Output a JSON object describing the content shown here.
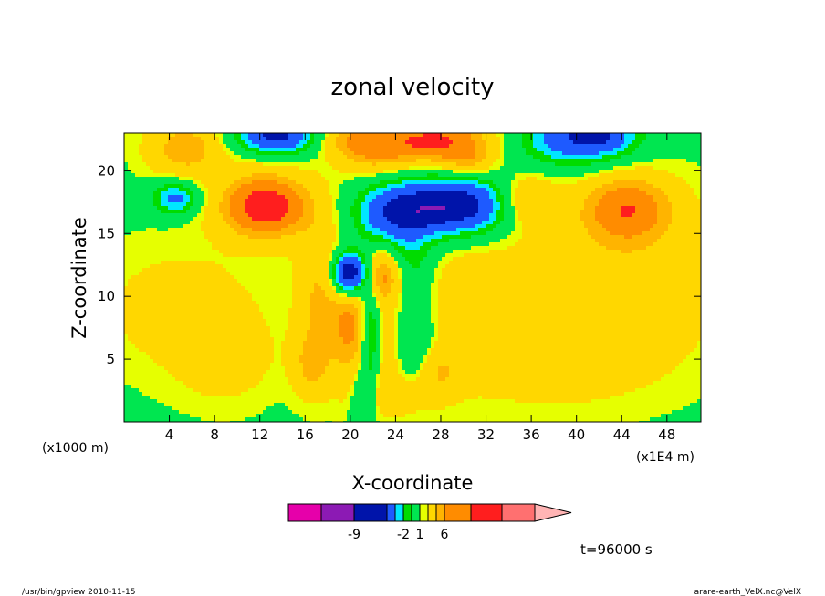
{
  "chart_data": {
    "type": "heatmap",
    "title": "zonal velocity",
    "xlabel": "X-coordinate",
    "ylabel": "Z-coordinate",
    "x_unit_left": "(x1000 m)",
    "x_unit_right": "(x1E4 m)",
    "xlim": [
      0,
      51
    ],
    "ylim": [
      0,
      23
    ],
    "x_ticks": [
      4,
      8,
      12,
      16,
      20,
      24,
      28,
      32,
      36,
      40,
      44,
      48
    ],
    "y_ticks": [
      5,
      10,
      15,
      20
    ],
    "time_label": "t=96000 s",
    "colorbar": {
      "colors": [
        "#e600aa",
        "#8c1ab4",
        "#0014aa",
        "#1e5aff",
        "#00e6ff",
        "#00dc00",
        "#00e650",
        "#e6ff00",
        "#ffd700",
        "#ffb400",
        "#ff8c00",
        "#ff1e1e",
        "#ff7070",
        "#ffb4b4"
      ],
      "tick_labels": [
        "-9",
        "-2",
        "1",
        "6"
      ],
      "tick_after_box": [
        1,
        4,
        6,
        9
      ]
    },
    "features": [
      {
        "x": 5.5,
        "z": 21.8,
        "sx": 2.4,
        "sy": 1.6,
        "amp": 3
      },
      {
        "x": 13.5,
        "z": 22.8,
        "sx": 2.5,
        "sy": 1.0,
        "amp": -6
      },
      {
        "x": 19.5,
        "z": 22.6,
        "sx": 2.0,
        "sy": 1.0,
        "amp": 2
      },
      {
        "x": 22.0,
        "z": 21.6,
        "sx": 2.2,
        "sy": 1.4,
        "amp": 2.5
      },
      {
        "x": 27.5,
        "z": 22.4,
        "sx": 3.5,
        "sy": 1.3,
        "amp": 5
      },
      {
        "x": 30.5,
        "z": 20.6,
        "sx": 1.5,
        "sy": 0.9,
        "amp": 2
      },
      {
        "x": 40.0,
        "z": 22.6,
        "sx": 3.5,
        "sy": 1.5,
        "amp": -5
      },
      {
        "x": 42.5,
        "z": 22.8,
        "sx": 1.8,
        "sy": 0.9,
        "amp": -2
      },
      {
        "x": 4.5,
        "z": 17.8,
        "sx": 1.4,
        "sy": 0.9,
        "amp": -4
      },
      {
        "x": 12.5,
        "z": 17.2,
        "sx": 2.8,
        "sy": 1.8,
        "amp": 6
      },
      {
        "x": 24.0,
        "z": 16.6,
        "sx": 2.5,
        "sy": 1.7,
        "amp": -5
      },
      {
        "x": 29.5,
        "z": 17.2,
        "sx": 3.2,
        "sy": 1.6,
        "amp": -7
      },
      {
        "x": 35.5,
        "z": 17.6,
        "sx": 1.8,
        "sy": 1.4,
        "amp": 2.5
      },
      {
        "x": 44.5,
        "z": 17.0,
        "sx": 2.8,
        "sy": 1.9,
        "amp": 4
      },
      {
        "x": 20.0,
        "z": 11.8,
        "sx": 1.1,
        "sy": 1.2,
        "amp": -9
      },
      {
        "x": 22.5,
        "z": 11.6,
        "sx": 1.4,
        "sy": 1.6,
        "amp": 4
      },
      {
        "x": 25.5,
        "z": 12.5,
        "sx": 1.4,
        "sy": 2.0,
        "amp": -2
      },
      {
        "x": 17.5,
        "z": 10.0,
        "sx": 1.5,
        "sy": 4.0,
        "amp": 2.5
      },
      {
        "x": 20.0,
        "z": 7.5,
        "sx": 1.0,
        "sy": 3.0,
        "amp": 3
      },
      {
        "x": 21.8,
        "z": 7.5,
        "sx": 0.6,
        "sy": 3.5,
        "amp": -3
      },
      {
        "x": 25.5,
        "z": 6.0,
        "sx": 1.6,
        "sy": 2.5,
        "amp": -2.5
      },
      {
        "x": 23.5,
        "z": 5.5,
        "sx": 1.0,
        "sy": 2.5,
        "amp": 2
      },
      {
        "x": 16.5,
        "z": 4.5,
        "sx": 1.2,
        "sy": 1.8,
        "amp": 2
      },
      {
        "x": 27.5,
        "z": 4.0,
        "sx": 1.5,
        "sy": 1.5,
        "amp": 2
      },
      {
        "x": 24.0,
        "z": 2.0,
        "sx": 2.5,
        "sy": 1.2,
        "amp": 1.5
      },
      {
        "x": 21.0,
        "z": 2.0,
        "sx": 0.7,
        "sy": 1.5,
        "amp": -2
      },
      {
        "x": 38.0,
        "z": 5.5,
        "sx": 7.0,
        "sy": 3.0,
        "amp": 1.5
      },
      {
        "x": 44.0,
        "z": 12.0,
        "sx": 7.0,
        "sy": 4.5,
        "amp": 1.5
      },
      {
        "x": 5.0,
        "z": 9.0,
        "sx": 5.0,
        "sy": 3.5,
        "amp": 1.3
      },
      {
        "x": 9.0,
        "z": 5.0,
        "sx": 3.0,
        "sy": 2.5,
        "amp": 1.2
      },
      {
        "x": 30.0,
        "z": 10.0,
        "sx": 4.0,
        "sy": 4.0,
        "amp": 1.2
      }
    ]
  },
  "footer": {
    "left": "/usr/bin/gpview  2010-11-15",
    "right": "arare-earth_VelX.nc@VelX"
  }
}
